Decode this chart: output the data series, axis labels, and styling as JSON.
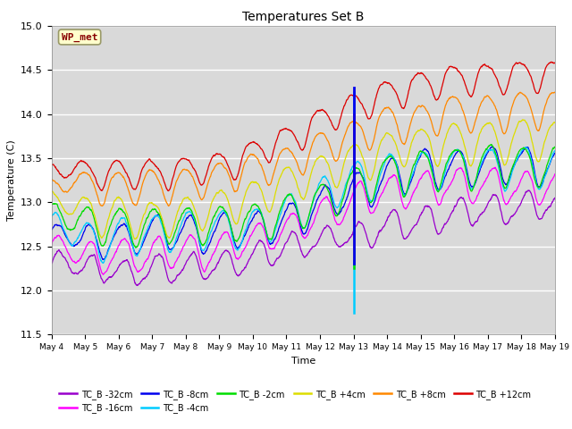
{
  "title": "Temperatures Set B",
  "xlabel": "Time",
  "ylabel": "Temperature (C)",
  "ylim": [
    11.5,
    15.0
  ],
  "background_color": "#d9d9d9",
  "wp_met_label": "WP_met",
  "wp_met_color": "#880000",
  "wp_met_bg": "#ffffcc",
  "wp_met_border": "#aaaaaa",
  "series": [
    {
      "label": "TC_B -32cm",
      "color": "#9900cc",
      "base": 12.3,
      "final": 13.0,
      "noise": 0.1,
      "amp": 0.12
    },
    {
      "label": "TC_B -16cm",
      "color": "#ff00ff",
      "base": 12.48,
      "final": 13.25,
      "noise": 0.09,
      "amp": 0.13
    },
    {
      "label": "TC_B -8cm",
      "color": "#0000ee",
      "base": 12.6,
      "final": 13.55,
      "noise": 0.09,
      "amp": 0.14
    },
    {
      "label": "TC_B -4cm",
      "color": "#00ccff",
      "base": 12.72,
      "final": 13.65,
      "noise": 0.09,
      "amp": 0.14
    },
    {
      "label": "TC_B -2cm",
      "color": "#00dd00",
      "base": 12.85,
      "final": 13.75,
      "noise": 0.09,
      "amp": 0.13
    },
    {
      "label": "TC_B +4cm",
      "color": "#dddd00",
      "base": 13.0,
      "final": 13.95,
      "noise": 0.08,
      "amp": 0.12
    },
    {
      "label": "TC_B +8cm",
      "color": "#ff8800",
      "base": 13.15,
      "final": 14.1,
      "noise": 0.07,
      "amp": 0.1
    },
    {
      "label": "TC_B +12cm",
      "color": "#dd0000",
      "base": 13.35,
      "final": 14.5,
      "noise": 0.07,
      "amp": 0.08
    }
  ],
  "vline_x": 9.0,
  "tick_days": [
    4,
    5,
    6,
    7,
    8,
    9,
    10,
    11,
    12,
    13,
    14,
    15,
    16,
    17,
    18,
    19
  ]
}
